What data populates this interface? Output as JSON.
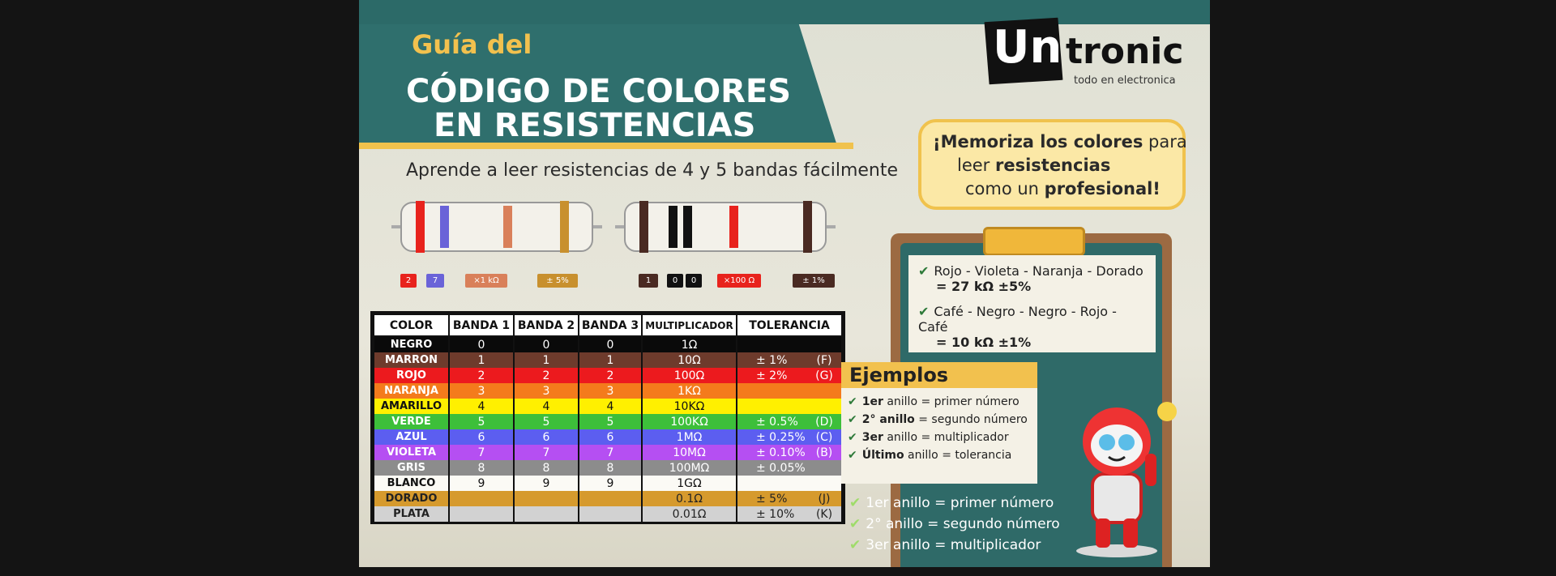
{
  "header": {
    "kicker": "Guía del",
    "title_line1": "CÓDIGO DE COLORES",
    "title_line2": "EN RESISTENCIAS",
    "subtitle": "Aprende a leer resistencias de 4 y 5 bandas fácilmente"
  },
  "logo": {
    "part1": "Un",
    "part2": "tronic",
    "tagline": "todo en electronica"
  },
  "bubble": {
    "lines": [
      [
        {
          "text": "¡Memoriza los colores",
          "bold": true
        },
        {
          "text": " para",
          "bold": false
        }
      ],
      [
        {
          "text": "leer ",
          "bold": false
        },
        {
          "text": "resistencias",
          "bold": true
        }
      ],
      [
        {
          "text": "como un ",
          "bold": false
        },
        {
          "text": "profesional!",
          "bold": true
        }
      ]
    ]
  },
  "resistor_labels": {
    "four_band": [
      {
        "text": "2",
        "color": "#e8231d"
      },
      {
        "text": "7",
        "color": "#6a63d8"
      },
      {
        "text": "×1 kΩ",
        "color": "#d9805a"
      },
      {
        "text": "± 5%",
        "color": "#c8902e"
      }
    ],
    "five_band": [
      {
        "text": "1",
        "color": "#4a2a22"
      },
      {
        "text": "0",
        "color": "#111111"
      },
      {
        "text": "0",
        "color": "#111111"
      },
      {
        "text": "×100 Ω",
        "color": "#e8231d"
      },
      {
        "text": "± 1%",
        "color": "#4a2a22"
      }
    ]
  },
  "table": {
    "headers": [
      "COLOR",
      "BANDA 1",
      "BANDA 2",
      "BANDA 3",
      "MULTIPLICADOR",
      "TOLERANCIA"
    ],
    "rows": [
      {
        "color": "NEGRO",
        "bg": "#0a0a0a",
        "fg": "#ffffff",
        "b1": "0",
        "b2": "0",
        "b3": "0",
        "mult": "1Ω",
        "tol": "",
        "code": ""
      },
      {
        "color": "MARRON",
        "bg": "#6e3b2c",
        "fg": "#ffffff",
        "b1": "1",
        "b2": "1",
        "b3": "1",
        "mult": "10Ω",
        "tol": "± 1%",
        "code": "(F)"
      },
      {
        "color": "ROJO",
        "bg": "#ec1a1e",
        "fg": "#ffffff",
        "b1": "2",
        "b2": "2",
        "b3": "2",
        "mult": "100Ω",
        "tol": "± 2%",
        "code": "(G)"
      },
      {
        "color": "NARANJA",
        "bg": "#f47b1c",
        "fg": "#ffffff",
        "b1": "3",
        "b2": "3",
        "b3": "3",
        "mult": "1KΩ",
        "tol": "",
        "code": ""
      },
      {
        "color": "AMARILLO",
        "bg": "#fff000",
        "fg": "#111111",
        "b1": "4",
        "b2": "4",
        "b3": "4",
        "mult": "10KΩ",
        "tol": "",
        "code": ""
      },
      {
        "color": "VERDE",
        "bg": "#3dbf3a",
        "fg": "#ffffff",
        "b1": "5",
        "b2": "5",
        "b3": "5",
        "mult": "100KΩ",
        "tol": "± 0.5%",
        "code": "(D)"
      },
      {
        "color": "AZUL",
        "bg": "#5c5ef0",
        "fg": "#ffffff",
        "b1": "6",
        "b2": "6",
        "b3": "6",
        "mult": "1MΩ",
        "tol": "± 0.25%",
        "code": "(C)"
      },
      {
        "color": "VIOLETA",
        "bg": "#b54ff2",
        "fg": "#ffffff",
        "b1": "7",
        "b2": "7",
        "b3": "7",
        "mult": "10MΩ",
        "tol": "± 0.10%",
        "code": "(B)"
      },
      {
        "color": "GRIS",
        "bg": "#8c8c8c",
        "fg": "#ffffff",
        "b1": "8",
        "b2": "8",
        "b3": "8",
        "mult": "100MΩ",
        "tol": "± 0.05%",
        "code": ""
      },
      {
        "color": "BLANCO",
        "bg": "#fbfaf5",
        "fg": "#111111",
        "b1": "9",
        "b2": "9",
        "b3": "9",
        "mult": "1GΩ",
        "tol": "",
        "code": ""
      },
      {
        "color": "DORADO",
        "bg": "#d69a2d",
        "fg": "#222222",
        "b1": "",
        "b2": "",
        "b3": "",
        "mult": "0.1Ω",
        "tol": "± 5%",
        "code": "(J)"
      },
      {
        "color": "PLATA",
        "bg": "#d2d2d2",
        "fg": "#222222",
        "b1": "",
        "b2": "",
        "b3": "",
        "mult": "0.01Ω",
        "tol": "± 10%",
        "code": "(K)"
      }
    ]
  },
  "clipboard": [
    {
      "colors": "Rojo - Violeta - Naranja - Dorado",
      "result": "= 27 kΩ ±5%"
    },
    {
      "colors": "Café - Negro - Negro - Rojo - Café",
      "result": "= 10 kΩ ±1%"
    }
  ],
  "examples": {
    "title": "Ejemplos",
    "items": [
      {
        "lead": "1er",
        "text": " anillo = primer número"
      },
      {
        "lead": "2° anillo",
        "text": " = segundo número"
      },
      {
        "lead": "3er",
        "text": " anillo = multiplicador"
      },
      {
        "lead": "Último",
        "text": " anillo = tolerancia"
      }
    ]
  },
  "bottom_list": [
    "1er anillo = primer número",
    "2° anillo = segundo número",
    "3er anillo = multiplicador"
  ]
}
